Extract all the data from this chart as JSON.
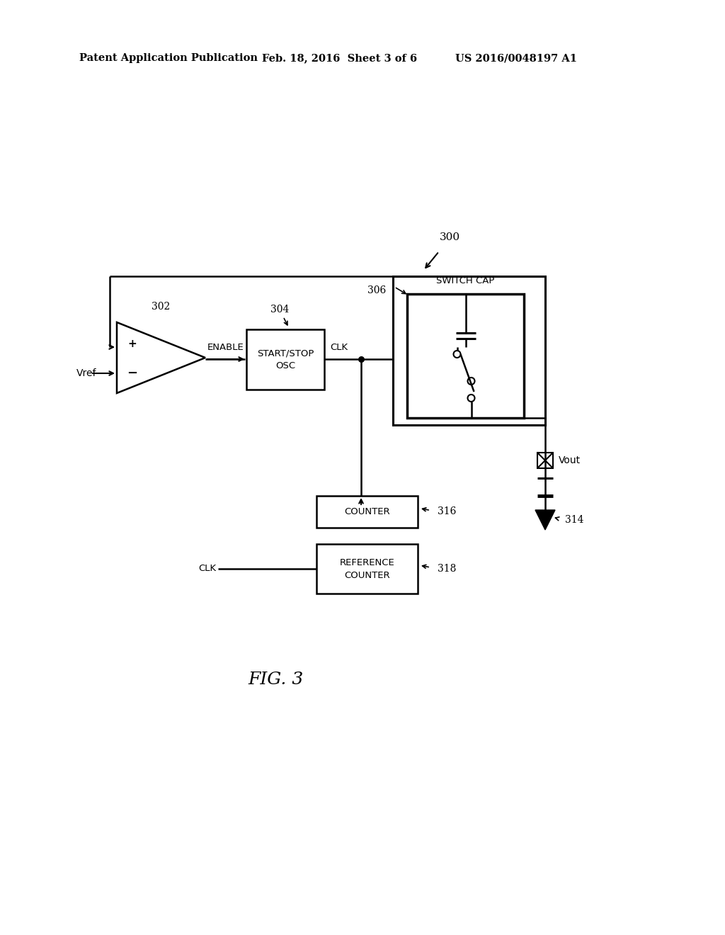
{
  "bg_color": "#ffffff",
  "header_left": "Patent Application Publication",
  "header_mid": "Feb. 18, 2016  Sheet 3 of 6",
  "header_right": "US 2016/0048197 A1",
  "fig_label": "FIG. 3",
  "label_300": "300",
  "label_302": "302",
  "label_304": "304",
  "label_306": "306",
  "label_314": "314",
  "label_316": "316",
  "label_318": "318",
  "label_vref": "Vref",
  "label_vout": "Vout",
  "label_enable": "ENABLE",
  "label_clk": "CLK",
  "label_clk_ref": "CLK",
  "label_switch_cap": "SWITCH CAP",
  "label_start_stop_line1": "START/STOP",
  "label_start_stop_line2": "OSC",
  "label_counter": "COUNTER",
  "label_ref_counter_line1": "REFERENCE",
  "label_ref_counter_line2": "COUNTER"
}
